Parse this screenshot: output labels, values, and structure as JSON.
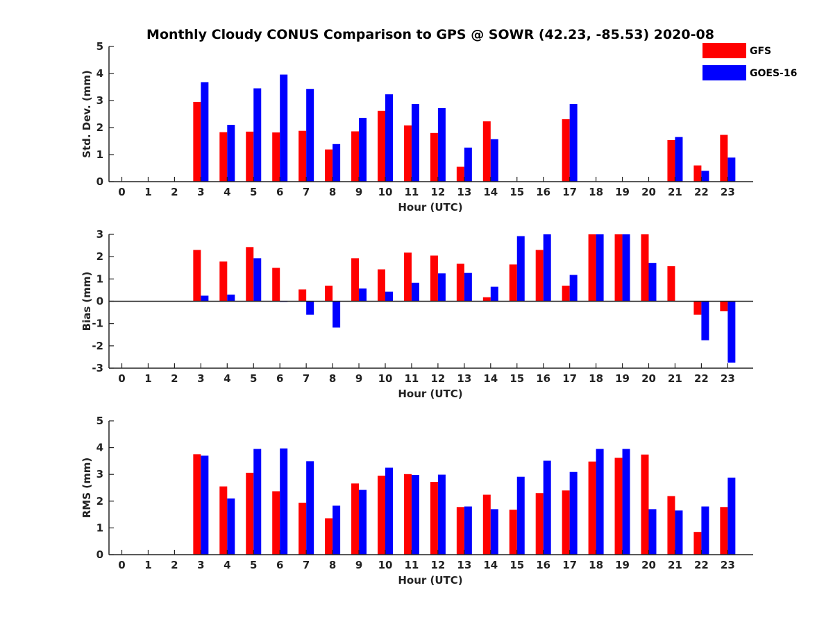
{
  "title": "Monthly Cloudy CONUS Comparison to GPS @ SOWR (42.23, -85.53) 2020-08",
  "colors": {
    "GFS": "#ff0000",
    "GOES-16": "#0000ff"
  },
  "legend": {
    "placement": "top-right",
    "entries": [
      "GFS",
      "GOES-16"
    ]
  },
  "chart_data": [
    {
      "type": "bar",
      "ylabel": "Std. Dev. (mm)",
      "xlabel": "Hour (UTC)",
      "ylim": [
        0,
        5
      ],
      "yticks": [
        0,
        1,
        2,
        3,
        4,
        5
      ],
      "categories": [
        "0",
        "1",
        "2",
        "3",
        "4",
        "5",
        "6",
        "7",
        "8",
        "9",
        "10",
        "11",
        "12",
        "13",
        "14",
        "15",
        "16",
        "17",
        "18",
        "19",
        "20",
        "21",
        "22",
        "23"
      ],
      "series": [
        {
          "name": "GFS",
          "values": [
            null,
            null,
            null,
            2.95,
            1.83,
            1.85,
            1.82,
            1.88,
            1.19,
            1.86,
            2.62,
            2.08,
            1.8,
            0.55,
            2.23,
            null,
            null,
            2.31,
            null,
            null,
            null,
            1.54,
            0.6,
            1.73
          ]
        },
        {
          "name": "GOES-16",
          "values": [
            null,
            null,
            null,
            3.68,
            2.1,
            3.45,
            3.96,
            3.43,
            1.39,
            2.36,
            3.23,
            2.87,
            2.72,
            1.26,
            1.57,
            null,
            null,
            2.87,
            null,
            null,
            null,
            1.65,
            0.4,
            0.89
          ]
        }
      ]
    },
    {
      "type": "bar",
      "ylabel": "Bias (mm)",
      "xlabel": "Hour (UTC)",
      "ylim": [
        -3,
        3
      ],
      "yticks": [
        -3,
        -2,
        -1,
        0,
        1,
        2,
        3
      ],
      "categories": [
        "0",
        "1",
        "2",
        "3",
        "4",
        "5",
        "6",
        "7",
        "8",
        "9",
        "10",
        "11",
        "12",
        "13",
        "14",
        "15",
        "16",
        "17",
        "18",
        "19",
        "20",
        "21",
        "22",
        "23"
      ],
      "series": [
        {
          "name": "GFS",
          "values": [
            null,
            null,
            null,
            2.3,
            1.78,
            2.43,
            1.5,
            0.53,
            0.7,
            1.93,
            1.43,
            2.18,
            2.05,
            1.68,
            0.18,
            1.65,
            2.3,
            0.7,
            3.0,
            3.0,
            3.0,
            1.57,
            -0.6,
            -0.45
          ]
        },
        {
          "name": "GOES-16",
          "values": [
            null,
            null,
            null,
            0.25,
            0.3,
            1.93,
            -0.03,
            -0.6,
            -1.18,
            0.57,
            0.43,
            0.83,
            1.25,
            1.27,
            0.65,
            2.92,
            3.0,
            1.18,
            3.0,
            3.0,
            1.72,
            null,
            -1.75,
            -2.75
          ]
        }
      ]
    },
    {
      "type": "bar",
      "ylabel": "RMS (mm)",
      "xlabel": "Hour (UTC)",
      "ylim": [
        0,
        5
      ],
      "yticks": [
        0,
        1,
        2,
        3,
        4,
        5
      ],
      "categories": [
        "0",
        "1",
        "2",
        "3",
        "4",
        "5",
        "6",
        "7",
        "8",
        "9",
        "10",
        "11",
        "12",
        "13",
        "14",
        "15",
        "16",
        "17",
        "18",
        "19",
        "20",
        "21",
        "22",
        "23"
      ],
      "series": [
        {
          "name": "GFS",
          "values": [
            null,
            null,
            null,
            3.75,
            2.55,
            3.06,
            2.37,
            1.94,
            1.36,
            2.66,
            2.95,
            3.01,
            2.72,
            1.78,
            2.24,
            1.68,
            2.3,
            2.4,
            3.48,
            3.62,
            3.74,
            2.19,
            0.85,
            1.78
          ]
        },
        {
          "name": "GOES-16",
          "values": [
            null,
            null,
            null,
            3.7,
            2.1,
            3.95,
            3.97,
            3.49,
            1.83,
            2.42,
            3.25,
            2.98,
            2.99,
            1.8,
            1.7,
            2.91,
            3.51,
            3.09,
            3.95,
            3.95,
            1.7,
            1.65,
            1.8,
            2.88
          ]
        }
      ]
    }
  ]
}
